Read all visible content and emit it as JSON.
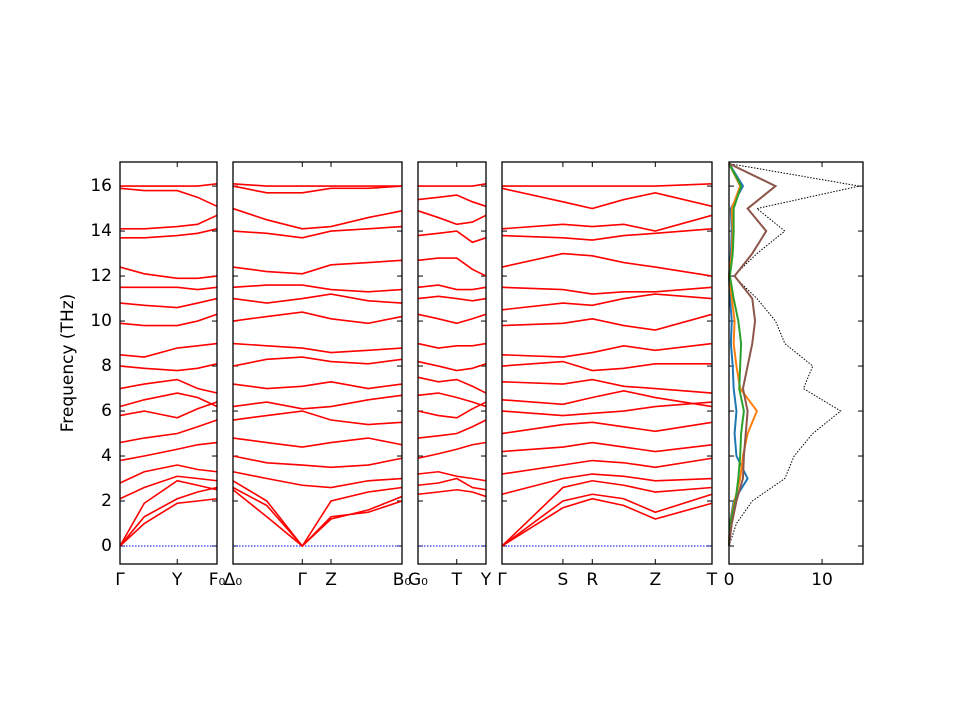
{
  "chart_data": {
    "type": "band-structure",
    "ylabel": "Frequency (THz)",
    "ylim": [
      -0.8,
      17.07
    ],
    "yticks": [
      0,
      2,
      4,
      6,
      8,
      10,
      12,
      14,
      16
    ],
    "color": "#ff0000",
    "panels": [
      {
        "type": "line",
        "xlim": [
          0,
          1
        ],
        "x": [
          0,
          0.25,
          0.59,
          0.8,
          1
        ],
        "xticks": [
          {
            "value": 0,
            "label": "Γ"
          },
          {
            "value": 0.59,
            "label": "Y"
          },
          {
            "value": 1,
            "label": "F₀"
          }
        ],
        "series": [
          {
            "color": "#0000ff",
            "style": "dotted",
            "values": [
              0,
              0,
              0,
              0,
              0
            ]
          },
          {
            "values": [
              0,
              1.0,
              1.9,
              2.0,
              2.1
            ]
          },
          {
            "values": [
              0,
              1.3,
              2.1,
              2.4,
              2.6
            ]
          },
          {
            "values": [
              0,
              1.9,
              2.9,
              2.7,
              2.5
            ]
          },
          {
            "values": [
              2.1,
              2.6,
              3.1,
              3.0,
              2.9
            ]
          },
          {
            "values": [
              2.8,
              3.3,
              3.6,
              3.4,
              3.3
            ]
          },
          {
            "values": [
              3.8,
              4.0,
              4.3,
              4.5,
              4.6
            ]
          },
          {
            "values": [
              4.6,
              4.8,
              5.0,
              5.3,
              5.6
            ]
          },
          {
            "values": [
              5.8,
              6.0,
              5.7,
              6.1,
              6.4
            ]
          },
          {
            "values": [
              6.2,
              6.5,
              6.8,
              6.6,
              6.2
            ]
          },
          {
            "values": [
              7.0,
              7.2,
              7.4,
              7.0,
              6.8
            ]
          },
          {
            "values": [
              8.0,
              7.9,
              7.8,
              7.9,
              8.1
            ]
          },
          {
            "values": [
              8.5,
              8.4,
              8.8,
              8.9,
              9.0
            ]
          },
          {
            "values": [
              9.9,
              9.8,
              9.8,
              10.0,
              10.3
            ]
          },
          {
            "values": [
              10.8,
              10.7,
              10.6,
              10.8,
              11.0
            ]
          },
          {
            "values": [
              11.5,
              11.5,
              11.5,
              11.4,
              11.5
            ]
          },
          {
            "values": [
              12.4,
              12.1,
              11.9,
              11.9,
              12.0
            ]
          },
          {
            "values": [
              13.7,
              13.7,
              13.8,
              13.9,
              14.1
            ]
          },
          {
            "values": [
              14.1,
              14.1,
              14.2,
              14.3,
              14.7
            ]
          },
          {
            "values": [
              15.9,
              15.8,
              15.8,
              15.5,
              15.1
            ]
          },
          {
            "values": [
              16.0,
              16.0,
              16.0,
              16.0,
              16.1
            ]
          }
        ]
      },
      {
        "type": "line",
        "xlim": [
          0,
          1
        ],
        "x": [
          0,
          0.2,
          0.41,
          0.58,
          0.8,
          1
        ],
        "xticks": [
          {
            "value": 0,
            "label": "Δ₀"
          },
          {
            "value": 0.41,
            "label": "Γ"
          },
          {
            "value": 0.58,
            "label": "Z"
          },
          {
            "value": 1,
            "label": "B₀"
          }
        ],
        "series": [
          {
            "color": "#0000ff",
            "style": "dotted",
            "values": [
              0,
              0,
              0,
              0,
              0,
              0
            ]
          },
          {
            "values": [
              2.5,
              1.3,
              0,
              1.3,
              1.5,
              2.0
            ]
          },
          {
            "values": [
              2.6,
              1.8,
              0,
              1.2,
              1.6,
              2.2
            ]
          },
          {
            "values": [
              2.9,
              2.0,
              0,
              2.0,
              2.4,
              2.6
            ]
          },
          {
            "values": [
              3.3,
              3.0,
              2.7,
              2.6,
              2.9,
              3.0
            ]
          },
          {
            "values": [
              4.0,
              3.7,
              3.6,
              3.5,
              3.6,
              3.9
            ]
          },
          {
            "values": [
              4.8,
              4.6,
              4.4,
              4.6,
              4.8,
              4.5
            ]
          },
          {
            "values": [
              5.6,
              5.8,
              6.0,
              5.6,
              5.4,
              5.5
            ]
          },
          {
            "values": [
              6.2,
              6.4,
              6.1,
              6.2,
              6.5,
              6.7
            ]
          },
          {
            "values": [
              7.2,
              7.0,
              7.1,
              7.3,
              7.0,
              7.2
            ]
          },
          {
            "values": [
              8.0,
              8.3,
              8.4,
              8.2,
              8.1,
              8.3
            ]
          },
          {
            "values": [
              9.0,
              8.9,
              8.8,
              8.6,
              8.7,
              8.8
            ]
          },
          {
            "values": [
              10.0,
              10.2,
              10.4,
              10.1,
              9.9,
              10.2
            ]
          },
          {
            "values": [
              11.0,
              10.8,
              11.0,
              11.2,
              10.9,
              10.8
            ]
          },
          {
            "values": [
              11.5,
              11.6,
              11.6,
              11.4,
              11.3,
              11.4
            ]
          },
          {
            "values": [
              12.4,
              12.2,
              12.1,
              12.5,
              12.6,
              12.7
            ]
          },
          {
            "values": [
              14.0,
              13.9,
              13.7,
              14.0,
              14.1,
              14.2
            ]
          },
          {
            "values": [
              15.0,
              14.5,
              14.1,
              14.2,
              14.6,
              14.9
            ]
          },
          {
            "values": [
              16.0,
              15.7,
              15.7,
              15.9,
              15.9,
              16.0
            ]
          },
          {
            "values": [
              16.1,
              16.0,
              16.0,
              16.0,
              16.0,
              16.0
            ]
          }
        ]
      },
      {
        "type": "line",
        "xlim": [
          0,
          1
        ],
        "x": [
          0,
          0.3,
          0.57,
          0.8,
          1
        ],
        "xticks": [
          {
            "value": 0,
            "label": "G₀"
          },
          {
            "value": 0.57,
            "label": "T"
          },
          {
            "value": 1,
            "label": "Y"
          }
        ],
        "series": [
          {
            "color": "#0000ff",
            "style": "dotted",
            "values": [
              0,
              0,
              0,
              0,
              0
            ]
          },
          {
            "values": [
              2.3,
              2.4,
              2.5,
              2.4,
              2.2
            ]
          },
          {
            "values": [
              2.7,
              2.8,
              3.0,
              2.6,
              2.5
            ]
          },
          {
            "values": [
              3.2,
              3.3,
              3.1,
              3.0,
              2.9
            ]
          },
          {
            "values": [
              3.9,
              4.1,
              4.3,
              4.5,
              4.6
            ]
          },
          {
            "values": [
              4.8,
              4.9,
              5.0,
              5.3,
              5.6
            ]
          },
          {
            "values": [
              6.0,
              5.8,
              5.7,
              6.1,
              6.4
            ]
          },
          {
            "values": [
              6.7,
              6.8,
              6.6,
              6.4,
              6.2
            ]
          },
          {
            "values": [
              7.5,
              7.3,
              7.4,
              7.1,
              6.8
            ]
          },
          {
            "values": [
              8.2,
              8.0,
              7.8,
              7.9,
              8.1
            ]
          },
          {
            "values": [
              9.0,
              8.8,
              8.9,
              8.9,
              9.0
            ]
          },
          {
            "values": [
              10.3,
              10.1,
              9.9,
              10.1,
              10.3
            ]
          },
          {
            "values": [
              11.0,
              11.1,
              11.0,
              10.9,
              11.0
            ]
          },
          {
            "values": [
              11.5,
              11.6,
              11.4,
              11.4,
              11.5
            ]
          },
          {
            "values": [
              12.7,
              12.8,
              12.8,
              12.3,
              12.0
            ]
          },
          {
            "values": [
              13.8,
              13.9,
              14.0,
              13.5,
              13.7
            ]
          },
          {
            "values": [
              14.9,
              14.6,
              14.3,
              14.4,
              14.7
            ]
          },
          {
            "values": [
              15.4,
              15.5,
              15.6,
              15.3,
              15.1
            ]
          },
          {
            "values": [
              16.0,
              16.0,
              16.0,
              16.0,
              16.1
            ]
          }
        ]
      },
      {
        "type": "line",
        "xlim": [
          0,
          1
        ],
        "x": [
          0,
          0.29,
          0.43,
          0.58,
          0.73,
          1
        ],
        "xticks": [
          {
            "value": 0,
            "label": "Γ"
          },
          {
            "value": 0.29,
            "label": "S"
          },
          {
            "value": 0.43,
            "label": "R"
          },
          {
            "value": 0.73,
            "label": "Z"
          },
          {
            "value": 1,
            "label": "T"
          }
        ],
        "series": [
          {
            "color": "#0000ff",
            "style": "dotted",
            "values": [
              0,
              0,
              0,
              0,
              0,
              0
            ]
          },
          {
            "values": [
              0,
              1.7,
              2.1,
              1.8,
              1.2,
              1.9
            ]
          },
          {
            "values": [
              0,
              2.0,
              2.3,
              2.1,
              1.5,
              2.3
            ]
          },
          {
            "values": [
              0,
              2.6,
              2.9,
              2.7,
              2.4,
              2.6
            ]
          },
          {
            "values": [
              2.3,
              3.0,
              3.2,
              3.1,
              2.9,
              3.0
            ]
          },
          {
            "values": [
              3.2,
              3.6,
              3.8,
              3.7,
              3.5,
              3.9
            ]
          },
          {
            "values": [
              4.2,
              4.4,
              4.6,
              4.4,
              4.2,
              4.5
            ]
          },
          {
            "values": [
              5.0,
              5.4,
              5.5,
              5.3,
              5.1,
              5.5
            ]
          },
          {
            "values": [
              6.0,
              5.8,
              5.9,
              6.0,
              6.2,
              6.4
            ]
          },
          {
            "values": [
              6.5,
              6.3,
              6.6,
              6.9,
              6.6,
              6.2
            ]
          },
          {
            "values": [
              7.3,
              7.2,
              7.4,
              7.1,
              7.0,
              6.8
            ]
          },
          {
            "values": [
              8.0,
              8.2,
              7.8,
              7.9,
              8.1,
              8.1
            ]
          },
          {
            "values": [
              8.5,
              8.4,
              8.6,
              8.9,
              8.7,
              9.0
            ]
          },
          {
            "values": [
              9.8,
              9.9,
              10.1,
              9.8,
              9.6,
              10.3
            ]
          },
          {
            "values": [
              10.5,
              10.8,
              10.7,
              11.0,
              11.2,
              11.0
            ]
          },
          {
            "values": [
              11.5,
              11.4,
              11.2,
              11.3,
              11.3,
              11.5
            ]
          },
          {
            "values": [
              12.4,
              13.0,
              12.9,
              12.6,
              12.4,
              12.0
            ]
          },
          {
            "values": [
              13.8,
              13.7,
              13.6,
              13.8,
              13.9,
              14.1
            ]
          },
          {
            "values": [
              14.1,
              14.3,
              14.2,
              14.3,
              14.0,
              14.7
            ]
          },
          {
            "values": [
              15.9,
              15.3,
              15.0,
              15.4,
              15.7,
              15.1
            ]
          },
          {
            "values": [
              16.0,
              16.0,
              16.0,
              16.0,
              16.0,
              16.1
            ]
          }
        ]
      }
    ],
    "dos": {
      "type": "line",
      "xlim": [
        0,
        14.4
      ],
      "xticks": [
        0,
        10
      ],
      "frequency": [
        0,
        1,
        2,
        3,
        4,
        5,
        6,
        7,
        8,
        9,
        10,
        11,
        12,
        13,
        14,
        15,
        16,
        17
      ],
      "series": [
        {
          "color": "#000000",
          "style": "dotted",
          "values": [
            0,
            0.8,
            2.5,
            6,
            7,
            9,
            12,
            8,
            9,
            6,
            5,
            3,
            0.5,
            3,
            6,
            3,
            14,
            0
          ]
        },
        {
          "color": "#1f77b4",
          "values": [
            0,
            0.1,
            0.5,
            2,
            0.8,
            0.6,
            0.8,
            0.5,
            0.4,
            0.2,
            0.3,
            0.1,
            0,
            0.2,
            0.3,
            0.2,
            1.5,
            0
          ]
        },
        {
          "color": "#ff7f0e",
          "values": [
            0,
            0.1,
            0.6,
            1.2,
            1.5,
            2,
            3,
            1.2,
            0.8,
            0.5,
            0.6,
            0.3,
            0,
            0.3,
            0.4,
            0.3,
            1.2,
            0
          ]
        },
        {
          "color": "#2ca02c",
          "values": [
            0,
            0.1,
            0.7,
            1,
            1.2,
            1.3,
            1.6,
            1.1,
            1.2,
            1.3,
            1.0,
            0.5,
            0.1,
            0.4,
            0.5,
            0.5,
            1.3,
            0
          ]
        },
        {
          "color": "#8c564b",
          "values": [
            0,
            0.3,
            0.8,
            1.5,
            1.6,
            1.8,
            2,
            1.5,
            2,
            2.5,
            2.8,
            2.5,
            0.6,
            2.5,
            4,
            2,
            5,
            0
          ]
        }
      ]
    }
  }
}
